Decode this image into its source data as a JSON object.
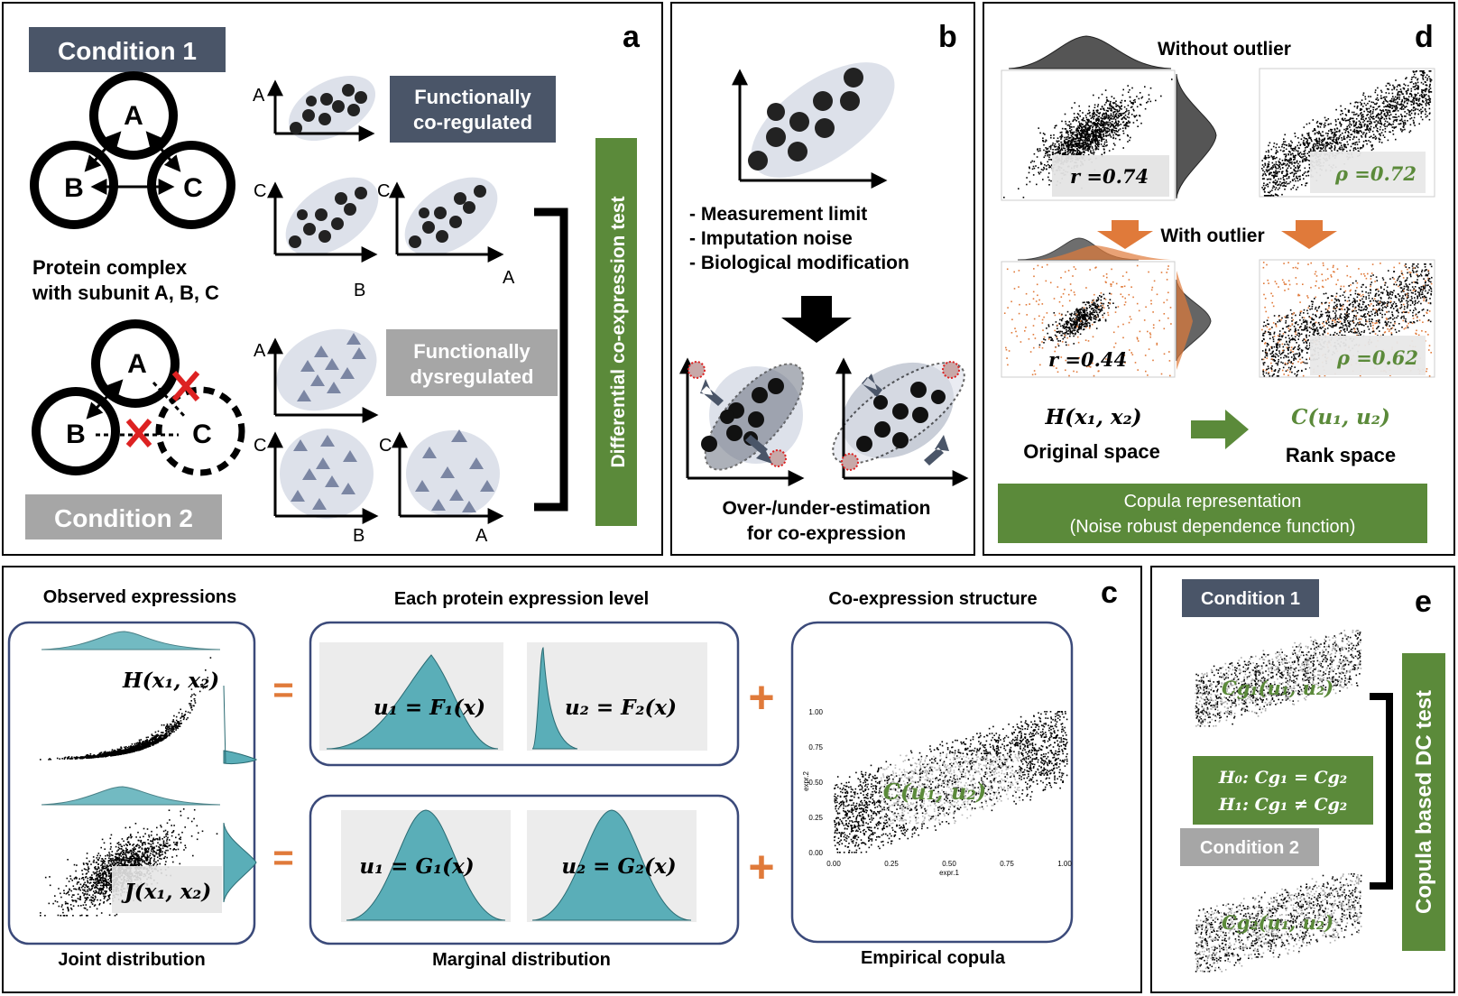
{
  "panel_labels": {
    "a": "a",
    "b": "b",
    "c": "c",
    "d": "d",
    "e": "e"
  },
  "panel_a": {
    "condition1": "Condition 1",
    "condition2": "Condition 2",
    "node_a": "A",
    "node_b": "B",
    "node_c": "C",
    "complex_line1": "Protein complex",
    "complex_line2": "with subunit A, B, C",
    "func_coreg_line1": "Functionally",
    "func_coreg_line2": "co-regulated",
    "func_dysreg_line1": "Functionally",
    "func_dysreg_line2": "dysregulated",
    "dc_test": "Differential co-expression test",
    "axis_a": "A",
    "axis_b": "B",
    "axis_c": "C"
  },
  "panel_b": {
    "bullets": [
      "- Measurement limit",
      "- Imputation noise",
      "- Biological modification"
    ],
    "caption_line1": "Over-/under-estimation",
    "caption_line2": "for co-expression"
  },
  "panel_c": {
    "observed": "Observed expressions",
    "each_protein": "Each protein expression level",
    "coexpr_structure": "Co-expression structure",
    "h_formula": "H(x₁, x₂)",
    "j_formula": "J(x₁, x₂)",
    "u1_f": "u₁ = F₁(x)",
    "u2_f": "u₂ = F₂(x)",
    "u1_g": "u₁ = G₁(x)",
    "u2_g": "u₂ = G₂(x)",
    "c_formula": "C(u₁, u₂)",
    "joint": "Joint distribution",
    "marginal": "Marginal distribution",
    "empirical": "Empirical copula",
    "equals": "=",
    "plus": "+",
    "copula_ticks": [
      "0.00",
      "0.25",
      "0.50",
      "0.75",
      "1.00"
    ],
    "copula_xlabel": "expr.1",
    "copula_ylabel": "expr.2"
  },
  "panel_d": {
    "without_outlier": "Without outlier",
    "with_outlier": "With outlier",
    "r1": "r =0.74",
    "rho1": "ρ =0.72",
    "r2": "r =0.44",
    "rho2": "ρ =0.62",
    "h_formula": "H(x₁, x₂)",
    "c_formula": "C(u₁, u₂)",
    "original_space": "Original space",
    "rank_space": "Rank space",
    "copula_line1": "Copula representation",
    "copula_line2": "(Noise robust dependence function)"
  },
  "panel_e": {
    "condition1": "Condition 1",
    "condition2": "Condition 2",
    "cg1": "Cg₁(u₁, u₂)",
    "cg2": "Cg₂(u₁, u₂)",
    "h0": "H₀: Cg₁ = Cg₂",
    "h1": "H₁: Cg₁ ≠ Cg₂",
    "test_label": "Copula based DC test"
  },
  "colors": {
    "dark_box": "#4a5568",
    "grey_box": "#a6a6a6",
    "green": "#5b8a3a",
    "orange": "#e07a3a",
    "teal": "#5aaeb8",
    "navy": "#3b4a7a",
    "ellipse": "#dde1ea",
    "triangle": "#7b86a3",
    "red": "#dd2222"
  }
}
